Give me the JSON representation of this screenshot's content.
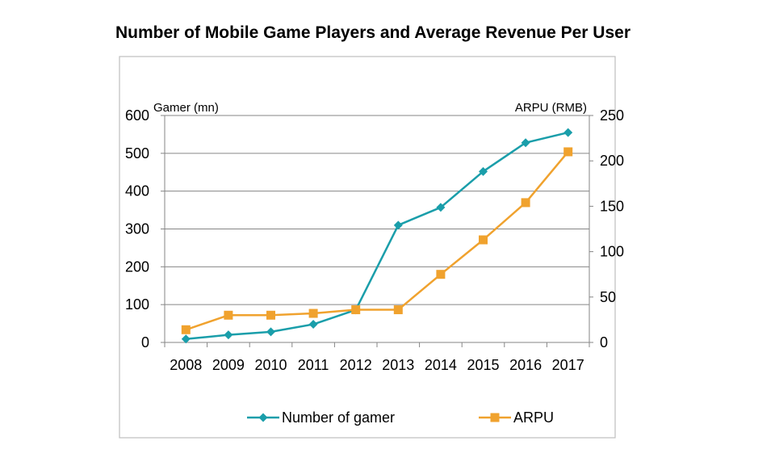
{
  "chart_data": {
    "type": "line",
    "title": "Number of Mobile Game Players and Average Revenue Per User",
    "y_left_label": "Gamer (mn)",
    "y_right_label": "ARPU (RMB)",
    "categories": [
      "2008",
      "2009",
      "2010",
      "2011",
      "2012",
      "2013",
      "2014",
      "2015",
      "2016",
      "2017"
    ],
    "y_left_range": [
      0,
      600
    ],
    "y_left_ticks": [
      0,
      100,
      200,
      300,
      400,
      500,
      600
    ],
    "y_right_range": [
      0,
      250
    ],
    "y_right_ticks": [
      0,
      50,
      100,
      150,
      200,
      250
    ],
    "grid": true,
    "legend_position": "bottom",
    "series": [
      {
        "name": "Number of gamer",
        "axis": "left",
        "marker": "diamond",
        "color": "#1A9EAA",
        "values": [
          9,
          20,
          28,
          48,
          86,
          310,
          357,
          452,
          528,
          555
        ]
      },
      {
        "name": "ARPU",
        "axis": "right",
        "marker": "square",
        "color": "#F0A22E",
        "values": [
          14,
          30,
          30,
          32,
          36,
          36,
          75,
          113,
          154,
          210
        ]
      }
    ]
  }
}
